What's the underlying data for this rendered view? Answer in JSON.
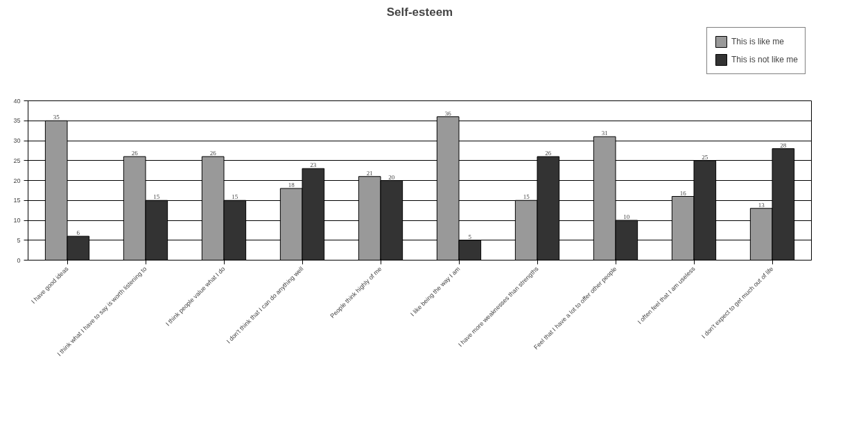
{
  "chart_data": {
    "type": "bar",
    "title": "Self-esteem",
    "categories": [
      "I have good ideas",
      "I think what I have to say is worth listening to",
      "I think people value what I do",
      "I don't think that I can do anything well",
      "People think highly of me",
      "I like being the way I am",
      "I have more weaknesses than strengths",
      "Feel that I have a lot to offer other people",
      "I often feel that I am useless",
      "I don't expect to get much out of life"
    ],
    "series": [
      {
        "name": "This is like me",
        "color": "#999999",
        "values": [
          35,
          26,
          26,
          18,
          21,
          36,
          15,
          31,
          16,
          13
        ]
      },
      {
        "name": "This is not like me",
        "color": "#333333",
        "values": [
          6,
          15,
          15,
          23,
          20,
          5,
          26,
          10,
          25,
          28
        ]
      }
    ],
    "ylim": [
      0,
      40
    ],
    "yticks": [
      0,
      5,
      10,
      15,
      20,
      25,
      30,
      35,
      40
    ],
    "grid": "y",
    "legend": "top right",
    "data_labels": true
  }
}
